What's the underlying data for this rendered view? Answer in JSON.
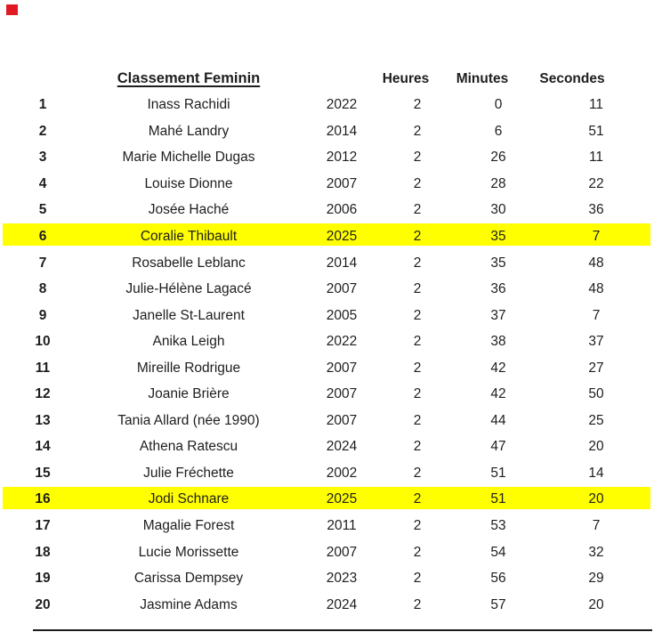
{
  "colors": {
    "background": "#ffffff",
    "text": "#1e1e1e",
    "highlight": "#ffff00",
    "corner_marker": "#e01a22",
    "bottom_line": "#1b1b1b"
  },
  "table": {
    "title": "Classement Feminin",
    "headers": {
      "heures": "Heures",
      "minutes": "Minutes",
      "secondes": "Secondes"
    },
    "rows": [
      {
        "rank": "1",
        "name": "Inass Rachidi",
        "year": "2022",
        "heures": "2",
        "minutes": "0",
        "secondes": "11",
        "highlighted": false
      },
      {
        "rank": "2",
        "name": "Mahé Landry",
        "year": "2014",
        "heures": "2",
        "minutes": "6",
        "secondes": "51",
        "highlighted": false
      },
      {
        "rank": "3",
        "name": "Marie Michelle Dugas",
        "year": "2012",
        "heures": "2",
        "minutes": "26",
        "secondes": "11",
        "highlighted": false
      },
      {
        "rank": "4",
        "name": "Louise Dionne",
        "year": "2007",
        "heures": "2",
        "minutes": "28",
        "secondes": "22",
        "highlighted": false
      },
      {
        "rank": "5",
        "name": "Josée Haché",
        "year": "2006",
        "heures": "2",
        "minutes": "30",
        "secondes": "36",
        "highlighted": false
      },
      {
        "rank": "6",
        "name": "Coralie Thibault",
        "year": "2025",
        "heures": "2",
        "minutes": "35",
        "secondes": "7",
        "highlighted": true
      },
      {
        "rank": "7",
        "name": "Rosabelle Leblanc",
        "year": "2014",
        "heures": "2",
        "minutes": "35",
        "secondes": "48",
        "highlighted": false
      },
      {
        "rank": "8",
        "name": "Julie-Hélène Lagacé",
        "year": "2007",
        "heures": "2",
        "minutes": "36",
        "secondes": "48",
        "highlighted": false
      },
      {
        "rank": "9",
        "name": "Janelle St-Laurent",
        "year": "2005",
        "heures": "2",
        "minutes": "37",
        "secondes": "7",
        "highlighted": false
      },
      {
        "rank": "10",
        "name": "Anika Leigh",
        "year": "2022",
        "heures": "2",
        "minutes": "38",
        "secondes": "37",
        "highlighted": false
      },
      {
        "rank": "11",
        "name": "Mireille Rodrigue",
        "year": "2007",
        "heures": "2",
        "minutes": "42",
        "secondes": "27",
        "highlighted": false
      },
      {
        "rank": "12",
        "name": "Joanie Brière",
        "year": "2007",
        "heures": "2",
        "minutes": "42",
        "secondes": "50",
        "highlighted": false
      },
      {
        "rank": "13",
        "name": "Tania Allard (née 1990)",
        "year": "2007",
        "heures": "2",
        "minutes": "44",
        "secondes": "25",
        "highlighted": false
      },
      {
        "rank": "14",
        "name": "Athena Ratescu",
        "year": "2024",
        "heures": "2",
        "minutes": "47",
        "secondes": "20",
        "highlighted": false
      },
      {
        "rank": "15",
        "name": "Julie Fréchette",
        "year": "2002",
        "heures": "2",
        "minutes": "51",
        "secondes": "14",
        "highlighted": false
      },
      {
        "rank": "16",
        "name": "Jodi Schnare",
        "year": "2025",
        "heures": "2",
        "minutes": "51",
        "secondes": "20",
        "highlighted": true
      },
      {
        "rank": "17",
        "name": "Magalie Forest",
        "year": "2011",
        "heures": "2",
        "minutes": "53",
        "secondes": "7",
        "highlighted": false
      },
      {
        "rank": "18",
        "name": "Lucie Morissette",
        "year": "2007",
        "heures": "2",
        "minutes": "54",
        "secondes": "32",
        "highlighted": false
      },
      {
        "rank": "19",
        "name": "Carissa Dempsey",
        "year": "2023",
        "heures": "2",
        "minutes": "56",
        "secondes": "29",
        "highlighted": false
      },
      {
        "rank": "20",
        "name": "Jasmine Adams",
        "year": "2024",
        "heures": "2",
        "minutes": "57",
        "secondes": "20",
        "highlighted": false
      }
    ]
  }
}
